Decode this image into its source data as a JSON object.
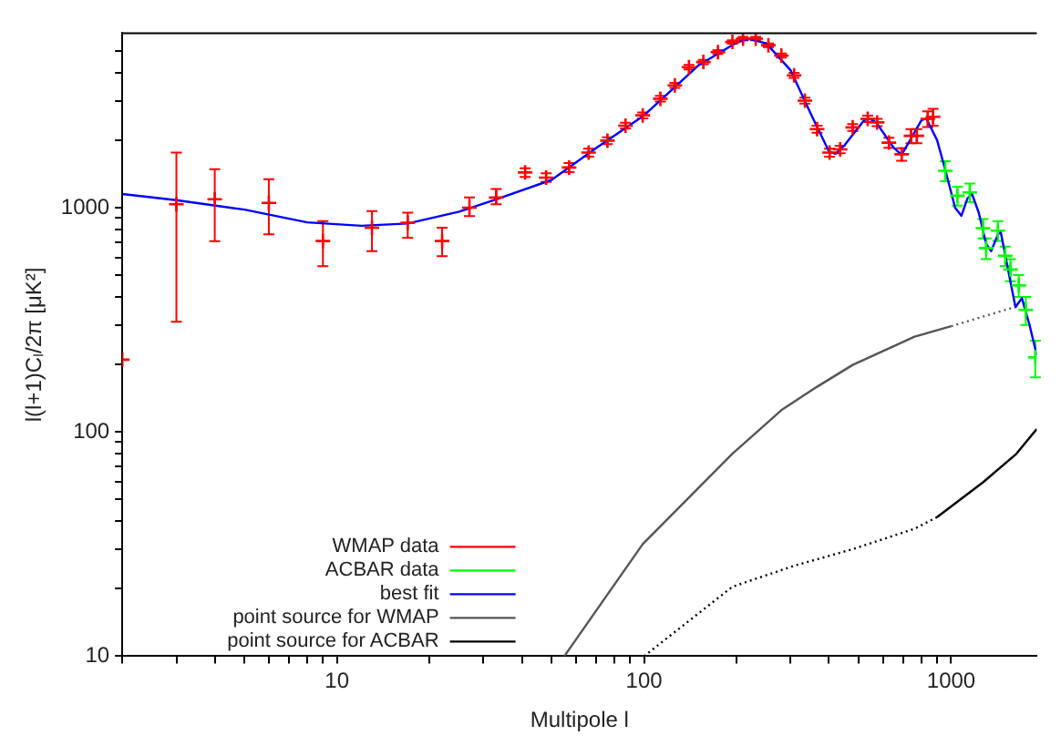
{
  "chart_data": {
    "type": "scatter",
    "xlabel": "Multipole l",
    "ylabel": "l(l+1)Cₗ/2π [μK²]",
    "log": "xy",
    "xlim": [
      2,
      1900
    ],
    "ylim": [
      10,
      6000
    ],
    "xticks": [
      {
        "value": 2,
        "label": null
      },
      {
        "value": 3,
        "label": null
      },
      {
        "value": 4,
        "label": null
      },
      {
        "value": 5,
        "label": null
      },
      {
        "value": 6,
        "label": null
      },
      {
        "value": 7,
        "label": null
      },
      {
        "value": 8,
        "label": null
      },
      {
        "value": 9,
        "label": null
      },
      10,
      {
        "value": 20,
        "label": null
      },
      {
        "value": 30,
        "label": null
      },
      {
        "value": 40,
        "label": null
      },
      {
        "value": 50,
        "label": null
      },
      {
        "value": 60,
        "label": null
      },
      {
        "value": 70,
        "label": null
      },
      {
        "value": 80,
        "label": null
      },
      {
        "value": 90,
        "label": null
      },
      100,
      {
        "value": 200,
        "label": null
      },
      {
        "value": 300,
        "label": null
      },
      {
        "value": 400,
        "label": null
      },
      {
        "value": 500,
        "label": null
      },
      {
        "value": 600,
        "label": null
      },
      {
        "value": 700,
        "label": null
      },
      {
        "value": 800,
        "label": null
      },
      {
        "value": 900,
        "label": null
      },
      1000
    ],
    "yticks": [
      10,
      {
        "value": 20,
        "label": null
      },
      {
        "value": 30,
        "label": null
      },
      {
        "value": 40,
        "label": null
      },
      {
        "value": 50,
        "label": null
      },
      {
        "value": 60,
        "label": null
      },
      {
        "value": 70,
        "label": null
      },
      {
        "value": 80,
        "label": null
      },
      {
        "value": 90,
        "label": null
      },
      100,
      {
        "value": 200,
        "label": null
      },
      {
        "value": 300,
        "label": null
      },
      {
        "value": 400,
        "label": null
      },
      {
        "value": 500,
        "label": null
      },
      {
        "value": 600,
        "label": null
      },
      {
        "value": 700,
        "label": null
      },
      {
        "value": 800,
        "label": null
      },
      {
        "value": 900,
        "label": null
      },
      1000,
      {
        "value": 2000,
        "label": null
      },
      {
        "value": 3000,
        "label": null
      },
      {
        "value": 4000,
        "label": null
      },
      {
        "value": 5000,
        "label": null
      }
    ],
    "grid": false,
    "legend": "bottom left",
    "series": [
      {
        "name": "WMAP data",
        "marker": "cross",
        "color": "#ff0000",
        "x": [
          2,
          3,
          4,
          6,
          9,
          13,
          17,
          22,
          27,
          33,
          41,
          48,
          57,
          66,
          76,
          87,
          99,
          113,
          126,
          140,
          156,
          174,
          194,
          210,
          231,
          254,
          280,
          308,
          334,
          366,
          402,
          435,
          478,
          535,
          574,
          627,
          690,
          740,
          773,
          839,
          873
        ],
        "values": [
          210,
          1035,
          1090,
          1050,
          710,
          814,
          856,
          710,
          1000,
          1110,
          1435,
          1362,
          1510,
          1760,
          1990,
          2320,
          2580,
          3060,
          3510,
          4230,
          4460,
          4940,
          5480,
          5670,
          5670,
          5300,
          4770,
          3890,
          3000,
          2240,
          1760,
          1820,
          2280,
          2490,
          2400,
          1950,
          1730,
          2090,
          2090,
          2490,
          2540
        ],
        "errors": [
          null,
          [
            310,
            1760
          ],
          [
            709,
            1485
          ],
          [
            760,
            1340
          ],
          [
            548,
            872
          ],
          [
            640,
            966
          ],
          [
            734,
            950
          ],
          [
            607,
            814
          ],
          [
            918,
            1110
          ],
          [
            1035,
            1210
          ],
          [
            1370,
            1500
          ],
          60,
          70,
          70,
          70,
          70,
          80,
          90,
          90,
          100,
          100,
          100,
          100,
          100,
          100,
          100,
          100,
          100,
          90,
          80,
          70,
          70,
          80,
          80,
          90,
          100,
          110,
          150,
          150,
          200,
          [
            2320,
            2760
          ]
        ]
      },
      {
        "name": "ACBAR data",
        "marker": "cross",
        "color": "#00ff00",
        "x": [
          957,
          1048,
          1150,
          1270,
          1300,
          1420,
          1500,
          1560,
          1660,
          1750,
          1880
        ],
        "values": [
          1460,
          1130,
          1170,
          810,
          660,
          790,
          610,
          530,
          450,
          350,
          215
        ],
        "errors": [
          150,
          110,
          110,
          80,
          70,
          80,
          60,
          60,
          50,
          50,
          40
        ]
      },
      {
        "name": "best fit",
        "type": "line",
        "marker": "none",
        "line_style": "solid",
        "color": "#0000ff",
        "x": [
          2,
          3,
          5,
          8,
          12,
          17,
          25,
          33,
          50,
          70,
          100,
          150,
          200,
          220,
          250,
          300,
          350,
          400,
          420,
          450,
          520,
          540,
          570,
          650,
          690,
          750,
          800,
          830,
          900,
          960,
          1030,
          1080,
          1130,
          1170,
          1230,
          1300,
          1350,
          1420,
          1450,
          1520,
          1620,
          1700,
          1800,
          1900
        ],
        "values": [
          1150,
          1080,
          980,
          860,
          830,
          850,
          960,
          1090,
          1330,
          1850,
          2580,
          4300,
          5450,
          5650,
          5400,
          4100,
          2600,
          1780,
          1740,
          1900,
          2450,
          2500,
          2400,
          1850,
          1720,
          2100,
          2450,
          2500,
          2000,
          1450,
          1000,
          920,
          1100,
          1150,
          950,
          690,
          640,
          760,
          780,
          560,
          360,
          395,
          300,
          220
        ]
      },
      {
        "name": "point source for WMAP",
        "type": "line",
        "marker": "none",
        "line_style": "solid",
        "color": "#555555",
        "x": [
          55,
          99,
          194,
          280,
          366,
          478,
          760,
          1000
        ],
        "values": [
          10,
          31.6,
          80,
          125,
          159,
          199,
          266,
          296
        ]
      },
      {
        "type": "line",
        "marker": "none",
        "line_style": "dotted",
        "color": "#555555",
        "x": [
          1000,
          1630
        ],
        "values": [
          296,
          362
        ]
      },
      {
        "type": "line",
        "marker": "none",
        "line_style": "dotted",
        "color": "#000000",
        "x": [
          100,
          194,
          308,
          478,
          760,
          900
        ],
        "values": [
          10,
          20.4,
          25.3,
          30,
          37,
          41.7
        ]
      },
      {
        "name": "point source for ACBAR",
        "type": "line",
        "marker": "none",
        "line_style": "solid",
        "color": "#000000",
        "x": [
          900,
          1270,
          1630,
          1900
        ],
        "values": [
          41.7,
          59.6,
          79.8,
          103
        ]
      }
    ]
  }
}
